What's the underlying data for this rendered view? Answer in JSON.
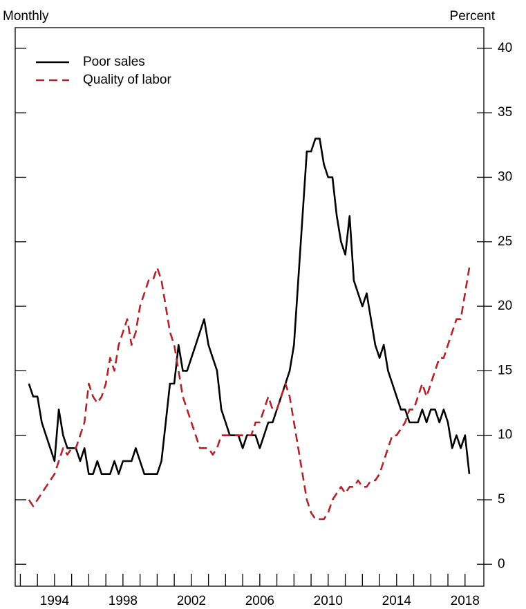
{
  "chart_data": {
    "type": "line",
    "left_label": "Monthly",
    "right_label": "Percent",
    "x": [
      1992.5,
      1992.75,
      1993,
      1993.25,
      1993.5,
      1993.75,
      1994,
      1994.25,
      1994.5,
      1994.75,
      1995,
      1995.25,
      1995.5,
      1995.75,
      1996,
      1996.25,
      1996.5,
      1996.75,
      1997,
      1997.25,
      1997.5,
      1997.75,
      1998,
      1998.25,
      1998.5,
      1998.75,
      1999,
      1999.25,
      1999.5,
      1999.75,
      2000,
      2000.25,
      2000.5,
      2000.75,
      2001,
      2001.25,
      2001.5,
      2001.75,
      2002,
      2002.25,
      2002.5,
      2002.75,
      2003,
      2003.25,
      2003.5,
      2003.75,
      2004,
      2004.25,
      2004.5,
      2004.75,
      2005,
      2005.25,
      2005.5,
      2005.75,
      2006,
      2006.25,
      2006.5,
      2006.75,
      2007,
      2007.25,
      2007.5,
      2007.75,
      2008,
      2008.25,
      2008.5,
      2008.75,
      2009,
      2009.25,
      2009.5,
      2009.75,
      2010,
      2010.25,
      2010.5,
      2010.75,
      2011,
      2011.25,
      2011.5,
      2011.75,
      2012,
      2012.25,
      2012.5,
      2012.75,
      2013,
      2013.25,
      2013.5,
      2013.75,
      2014,
      2014.25,
      2014.5,
      2014.75,
      2015,
      2015.25,
      2015.5,
      2015.75,
      2016,
      2016.25,
      2016.5,
      2016.75,
      2017,
      2017.25,
      2017.5,
      2017.75,
      2018,
      2018.25
    ],
    "series": [
      {
        "name": "Poor sales",
        "color": "#000000",
        "dash": false,
        "values": [
          14,
          13,
          13,
          11,
          10,
          9,
          8,
          12,
          10,
          9,
          9,
          9,
          8,
          9,
          7,
          7,
          8,
          7,
          7,
          7,
          8,
          7,
          8,
          8,
          8,
          9,
          8,
          7,
          7,
          7,
          7,
          8,
          11,
          14,
          14,
          17,
          15,
          15,
          16,
          17,
          18,
          19,
          17,
          16,
          15,
          12,
          11,
          10,
          10,
          10,
          9,
          10,
          10,
          10,
          9,
          10,
          11,
          11,
          12,
          13,
          14,
          15,
          17,
          22,
          27,
          32,
          32,
          33,
          33,
          31,
          30,
          30,
          27,
          25,
          24,
          27,
          22,
          21,
          20,
          21,
          19,
          17,
          16,
          17,
          15,
          14,
          13,
          12,
          12,
          11,
          11,
          11,
          12,
          11,
          12,
          12,
          11,
          12,
          11,
          9,
          10,
          9,
          10,
          7
        ]
      },
      {
        "name": "Quality of labor",
        "color": "#b22228",
        "dash": true,
        "values": [
          5,
          4.5,
          5,
          5.5,
          6,
          6.5,
          7,
          8,
          9,
          8.5,
          9,
          9,
          10,
          11,
          14,
          13,
          12.5,
          13,
          14,
          16,
          15,
          17,
          18,
          19,
          17,
          18,
          20,
          21,
          22,
          22,
          23,
          22,
          20,
          18,
          17,
          15,
          13,
          12,
          11,
          10,
          9,
          9,
          9,
          8.5,
          9,
          10,
          10,
          10,
          10,
          10,
          10,
          10,
          10,
          11,
          11,
          12,
          13,
          12,
          12,
          13,
          14,
          13,
          11,
          9,
          7,
          5,
          4,
          3.5,
          3.5,
          3.5,
          4,
          5,
          5.5,
          6,
          5.5,
          6,
          6,
          6.5,
          6,
          6,
          6.5,
          6.5,
          7,
          8,
          9,
          10,
          10,
          10.5,
          11,
          12,
          12,
          13,
          14,
          13,
          14,
          15,
          16,
          16,
          17,
          18,
          19,
          19,
          21,
          23
        ]
      }
    ],
    "xlim": [
      1991.7,
      2019.1
    ],
    "xticks": [
      1994,
      1998,
      2002,
      2006,
      2010,
      2014,
      2018
    ],
    "xminor_ticks": [
      1992,
      1993,
      1994,
      1995,
      1996,
      1997,
      1998,
      1999,
      2000,
      2001,
      2002,
      2003,
      2004,
      2005,
      2006,
      2007,
      2008,
      2009,
      2010,
      2011,
      2012,
      2013,
      2014,
      2015,
      2016,
      2017,
      2018
    ],
    "ylim": [
      -1.7,
      41.6
    ],
    "yticks": [
      0,
      5,
      10,
      15,
      20,
      25,
      30,
      35,
      40
    ],
    "legend": "upper left"
  }
}
